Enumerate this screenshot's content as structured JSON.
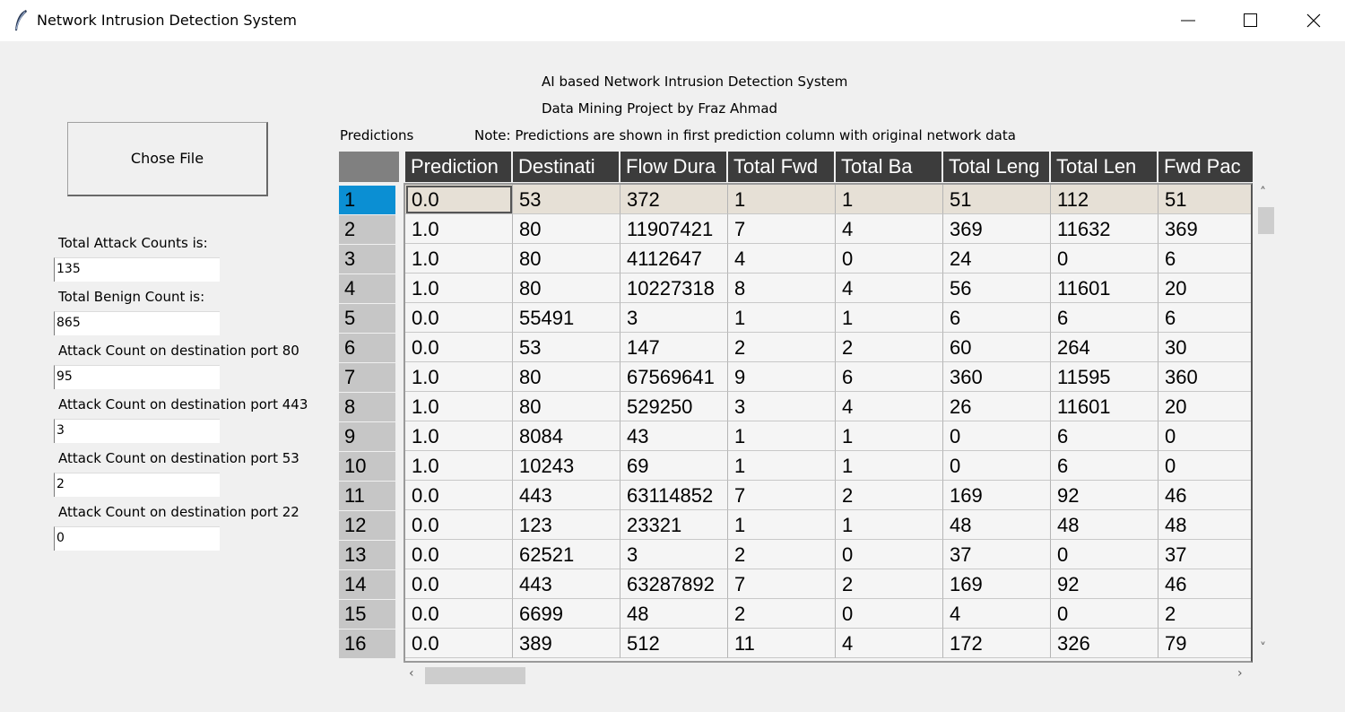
{
  "window": {
    "title": "Network Intrusion Detection System"
  },
  "left_panel": {
    "chose_file_label": "Chose File",
    "stats": [
      {
        "label": "Total Attack Counts is:",
        "value": "135"
      },
      {
        "label": "Total Benign Count is:",
        "value": "865"
      },
      {
        "label": "Attack Count on destination port 80",
        "value": "95"
      },
      {
        "label": "Attack Count on destination port 443",
        "value": "3"
      },
      {
        "label": "Attack Count on destination port 53",
        "value": "2"
      },
      {
        "label": "Attack Count on destination port 22",
        "value": "0"
      }
    ]
  },
  "header": {
    "title": "AI based Network Intrusion Detection System",
    "subtitle": "Data Mining Project by Fraz Ahmad",
    "predictions_label": "Predictions",
    "note": "Note: Predictions are shown in first prediction column with original network data"
  },
  "table": {
    "columns": [
      "Prediction",
      "Destinati",
      "Flow Dura",
      "Total Fwd",
      "Total Ba",
      "Total Leng",
      "Total Len",
      "Fwd Pac"
    ],
    "selected_row": 1,
    "rows": [
      {
        "num": "1",
        "cells": [
          "0.0",
          "53",
          "372",
          "1",
          "1",
          "51",
          "112",
          "51"
        ]
      },
      {
        "num": "2",
        "cells": [
          "1.0",
          "80",
          "11907421",
          "7",
          "4",
          "369",
          "11632",
          "369"
        ]
      },
      {
        "num": "3",
        "cells": [
          "1.0",
          "80",
          "4112647",
          "4",
          "0",
          "24",
          "0",
          "6"
        ]
      },
      {
        "num": "4",
        "cells": [
          "1.0",
          "80",
          "10227318",
          "8",
          "4",
          "56",
          "11601",
          "20"
        ]
      },
      {
        "num": "5",
        "cells": [
          "0.0",
          "55491",
          "3",
          "1",
          "1",
          "6",
          "6",
          "6"
        ]
      },
      {
        "num": "6",
        "cells": [
          "0.0",
          "53",
          "147",
          "2",
          "2",
          "60",
          "264",
          "30"
        ]
      },
      {
        "num": "7",
        "cells": [
          "1.0",
          "80",
          "67569641",
          "9",
          "6",
          "360",
          "11595",
          "360"
        ]
      },
      {
        "num": "8",
        "cells": [
          "1.0",
          "80",
          "529250",
          "3",
          "4",
          "26",
          "11601",
          "20"
        ]
      },
      {
        "num": "9",
        "cells": [
          "1.0",
          "8084",
          "43",
          "1",
          "1",
          "0",
          "6",
          "0"
        ]
      },
      {
        "num": "10",
        "cells": [
          "1.0",
          "10243",
          "69",
          "1",
          "1",
          "0",
          "6",
          "0"
        ]
      },
      {
        "num": "11",
        "cells": [
          "0.0",
          "443",
          "63114852",
          "7",
          "2",
          "169",
          "92",
          "46"
        ]
      },
      {
        "num": "12",
        "cells": [
          "0.0",
          "123",
          "23321",
          "1",
          "1",
          "48",
          "48",
          "48"
        ]
      },
      {
        "num": "13",
        "cells": [
          "0.0",
          "62521",
          "3",
          "2",
          "0",
          "37",
          "0",
          "37"
        ]
      },
      {
        "num": "14",
        "cells": [
          "0.0",
          "443",
          "63287892",
          "7",
          "2",
          "169",
          "92",
          "46"
        ]
      },
      {
        "num": "15",
        "cells": [
          "0.0",
          "6699",
          "48",
          "2",
          "0",
          "4",
          "0",
          "2"
        ]
      },
      {
        "num": "16",
        "cells": [
          "0.0",
          "389",
          "512",
          "11",
          "4",
          "172",
          "326",
          "79"
        ]
      }
    ]
  },
  "colors": {
    "header_bg": "#3c3c3c",
    "selected_rownum": "#0b8fd3",
    "selected_row": "#e6e0d6"
  }
}
